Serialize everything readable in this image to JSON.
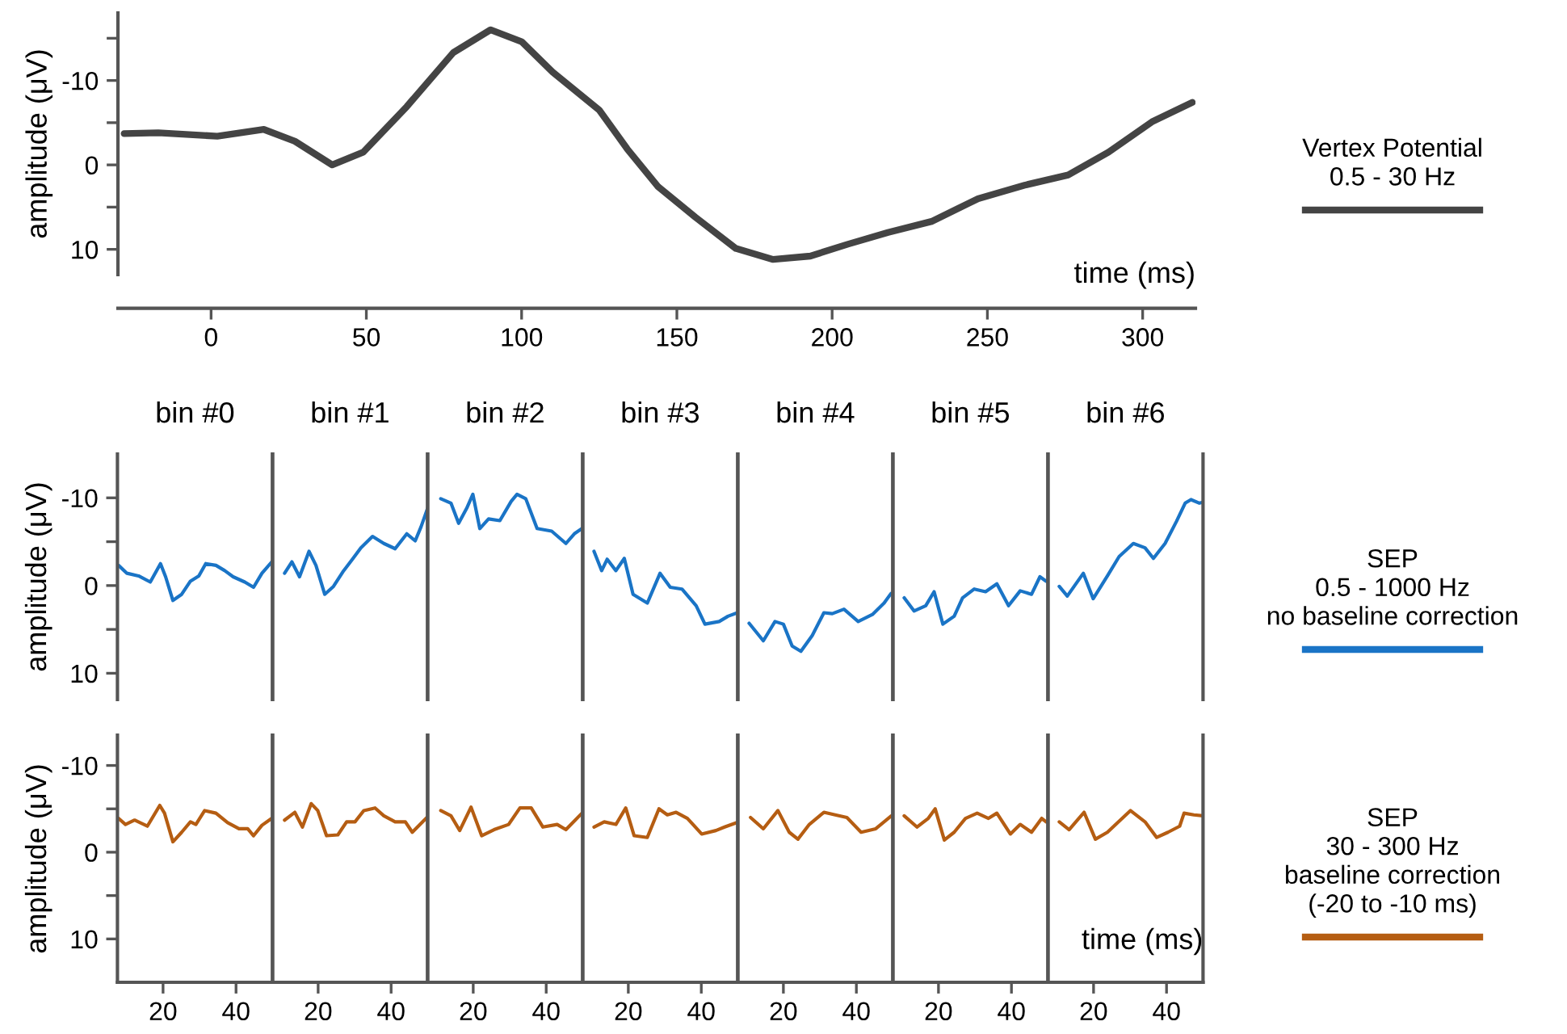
{
  "chart_data": [
    {
      "type": "line",
      "xlabel": "time (ms)",
      "ylabel": "amplitude (μV)",
      "xlim": [
        -30,
        317
      ],
      "ylim": [
        13,
        -18
      ],
      "xticks": [
        0,
        50,
        100,
        150,
        200,
        250,
        300
      ],
      "yticks": [
        {
          "value": -15,
          "label": null
        },
        -10,
        {
          "value": -5,
          "label": null
        },
        0,
        {
          "value": 5,
          "label": null
        },
        10
      ],
      "legend": "right",
      "series": [
        {
          "name": "Vertex Potential\n0.5 - 30 Hz",
          "color": "#444444",
          "x": [
            -28,
            -17,
            2,
            17,
            27,
            39,
            49,
            63,
            78,
            90,
            100,
            110,
            125,
            134,
            144,
            156,
            169,
            181,
            193,
            205,
            218,
            232,
            247,
            262,
            276,
            289,
            303,
            316
          ],
          "values": [
            -3.7,
            -3.8,
            -3.4,
            -4.2,
            -2.8,
            0,
            -1.5,
            -6.9,
            -13.3,
            -16,
            -14.6,
            -11,
            -6.5,
            -1.9,
            2.6,
            6.2,
            9.9,
            11.2,
            10.8,
            9.4,
            8.0,
            6.7,
            4.0,
            2.4,
            1.2,
            -1.5,
            -5.1,
            -7.4
          ]
        }
      ]
    },
    {
      "type": "line",
      "title": "bin #0",
      "ylabel": "amplitude (μV)",
      "xlim": [
        7.5,
        50
      ],
      "ylim": [
        13,
        -15
      ],
      "yticks": [
        -10,
        {
          "value": -5,
          "label": null
        },
        0,
        {
          "value": 5,
          "label": null
        },
        10
      ],
      "tick_labels": "y",
      "series": [
        {
          "color": "#1a74c6",
          "x": [
            7.8,
            10.1,
            13.3,
            16.5,
            19.3,
            20.7,
            22.7,
            25.1,
            27.5,
            29.8,
            31.7,
            34.5,
            36.9,
            39.2,
            42.4,
            44.8,
            47.1,
            49.8
          ],
          "values": [
            -2.3,
            -1.4,
            -1.1,
            -0.4,
            -2.5,
            -1.0,
            1.7,
            1.0,
            -0.5,
            -1.1,
            -2.5,
            -2.3,
            -1.7,
            -1.0,
            -0.4,
            0.2,
            -1.4,
            -2.7
          ]
        }
      ]
    },
    {
      "type": "line",
      "title": "bin #1",
      "xlim": [
        7.5,
        50
      ],
      "ylim": [
        13,
        -15
      ],
      "tick_labels": false,
      "series": [
        {
          "color": "#1a74c6",
          "x": [
            10.8,
            12.8,
            14.9,
            17.5,
            19.4,
            21.8,
            24.2,
            27,
            29.4,
            31.7,
            34.9,
            38,
            41.1,
            44.3,
            46.6,
            48.2,
            50
          ],
          "values": [
            -1.4,
            -2.7,
            -1.0,
            -3.9,
            -2.3,
            1.0,
            0.1,
            -1.7,
            -3.0,
            -4.3,
            -5.6,
            -4.8,
            -4.2,
            -5.9,
            -5.1,
            -6.7,
            -8.8
          ]
        }
      ]
    },
    {
      "type": "line",
      "title": "bin #2",
      "xlim": [
        7.5,
        50
      ],
      "ylim": [
        13,
        -15
      ],
      "tick_labels": false,
      "series": [
        {
          "color": "#1a74c6",
          "x": [
            11.1,
            13.9,
            16,
            18.2,
            19.9,
            21.8,
            24.2,
            27.3,
            30.4,
            32,
            34.4,
            37.5,
            41.5,
            45.4,
            47.7,
            49.8
          ],
          "values": [
            -9.9,
            -9.4,
            -7.1,
            -8.8,
            -10.4,
            -6.5,
            -7.6,
            -7.4,
            -9.6,
            -10.4,
            -9.9,
            -6.5,
            -6.2,
            -4.8,
            -5.9,
            -6.5
          ]
        }
      ]
    },
    {
      "type": "line",
      "title": "bin #3",
      "xlim": [
        7.5,
        50
      ],
      "ylim": [
        13,
        -15
      ],
      "tick_labels": false,
      "series": [
        {
          "color": "#1a74c6",
          "x": [
            10.6,
            12.7,
            14.2,
            16.6,
            18.9,
            21.3,
            25.2,
            28.7,
            31.5,
            34.7,
            38.6,
            41,
            44.9,
            47.3,
            49.9
          ],
          "values": [
            -3.9,
            -1.7,
            -3.0,
            -1.7,
            -3.1,
            1.0,
            2.0,
            -1.4,
            0.2,
            0.4,
            2.3,
            4.4,
            4.1,
            3.5,
            3.1
          ]
        }
      ]
    },
    {
      "type": "line",
      "title": "bin #4",
      "xlim": [
        7.5,
        50
      ],
      "ylim": [
        13,
        -15
      ],
      "tick_labels": false,
      "series": [
        {
          "color": "#1a74c6",
          "x": [
            10.6,
            14.5,
            17.7,
            20,
            22.4,
            24.8,
            27.9,
            31.1,
            33.4,
            36.6,
            40.5,
            44.4,
            47.6,
            49.5
          ],
          "values": [
            4.3,
            6.3,
            4.1,
            4.4,
            6.9,
            7.5,
            5.7,
            3.1,
            3.2,
            2.7,
            4.1,
            3.3,
            2.0,
            0.9
          ]
        }
      ]
    },
    {
      "type": "line",
      "title": "bin #5",
      "xlim": [
        7.5,
        50
      ],
      "ylim": [
        13,
        -15
      ],
      "tick_labels": false,
      "series": [
        {
          "color": "#1a74c6",
          "x": [
            10.6,
            13.3,
            16.5,
            18.8,
            21.2,
            24.3,
            26.6,
            29.8,
            32.9,
            36,
            39.2,
            42.4,
            45.5,
            47.8,
            49.5
          ],
          "values": [
            1.4,
            2.9,
            2.3,
            0.7,
            4.4,
            3.5,
            1.4,
            0.4,
            0.7,
            -0.2,
            2.3,
            0.6,
            1.0,
            -1.0,
            -0.5
          ]
        }
      ]
    },
    {
      "type": "line",
      "title": "bin #6",
      "xlim": [
        7.5,
        50
      ],
      "ylim": [
        13,
        -15
      ],
      "tick_labels": false,
      "legend": "right",
      "series": [
        {
          "name": "SEP\n0.5 - 1000 Hz\nno baseline correction",
          "color": "#1a74c6",
          "x": [
            10.6,
            12.8,
            17.2,
            19.9,
            23.8,
            27,
            30.9,
            34.1,
            36.4,
            39.6,
            42.7,
            45.1,
            46.7,
            49,
            50
          ],
          "values": [
            0.1,
            1.2,
            -1.4,
            1.5,
            -1.1,
            -3.3,
            -4.8,
            -4.3,
            -3.1,
            -4.8,
            -7.3,
            -9.4,
            -9.8,
            -9.4,
            -9.5
          ]
        }
      ]
    },
    {
      "type": "line",
      "ylabel": "amplitude (μV)",
      "xlim": [
        7.5,
        50
      ],
      "ylim": [
        15,
        -13.5
      ],
      "xticks": [
        20,
        40
      ],
      "yticks": [
        -10,
        {
          "value": -5,
          "label": null
        },
        0,
        {
          "value": 5,
          "label": null
        },
        10
      ],
      "series": [
        {
          "color": "#b55d12",
          "x": [
            7.8,
            9.7,
            12.2,
            15.7,
            19.1,
            20.4,
            22.7,
            25.1,
            27.5,
            29,
            31.4,
            34.5,
            37.7,
            40.8,
            43.2,
            44.8,
            47.1,
            49.8
          ],
          "values": [
            -3.9,
            -3.2,
            -3.7,
            -3.0,
            -5.4,
            -4.5,
            -1.2,
            -2.3,
            -3.5,
            -3.2,
            -4.8,
            -4.5,
            -3.4,
            -2.7,
            -2.7,
            -1.9,
            -3.1,
            -3.9
          ]
        }
      ]
    },
    {
      "type": "line",
      "xlim": [
        7.5,
        50
      ],
      "ylim": [
        15,
        -13.5
      ],
      "xticks": [
        20,
        40
      ],
      "tick_labels": "x",
      "series": [
        {
          "color": "#b55d12",
          "x": [
            10.8,
            13.6,
            15.7,
            18.1,
            19.9,
            22.3,
            25.4,
            27.8,
            30.1,
            32.5,
            35.6,
            38,
            41.1,
            43.9,
            45.8,
            49.8
          ],
          "values": [
            -3.7,
            -4.6,
            -2.9,
            -5.6,
            -4.8,
            -1.9,
            -2.0,
            -3.5,
            -3.5,
            -4.8,
            -5.1,
            -4.2,
            -3.5,
            -3.5,
            -2.3,
            -4.0
          ]
        }
      ]
    },
    {
      "type": "line",
      "xlim": [
        7.5,
        50
      ],
      "ylim": [
        15,
        -13.5
      ],
      "xticks": [
        20,
        40
      ],
      "tick_labels": "x",
      "series": [
        {
          "color": "#b55d12",
          "x": [
            11.1,
            13.9,
            16.3,
            19.4,
            22.3,
            25.7,
            29.7,
            32.8,
            35.9,
            39.1,
            43,
            45.4,
            49.8
          ],
          "values": [
            -4.8,
            -4.2,
            -2.5,
            -5.2,
            -1.9,
            -2.6,
            -3.2,
            -5.1,
            -5.1,
            -2.9,
            -3.2,
            -2.6,
            -4.5
          ]
        }
      ]
    },
    {
      "type": "line",
      "xlim": [
        7.5,
        50
      ],
      "ylim": [
        15,
        -13.5
      ],
      "xticks": [
        20,
        40
      ],
      "tick_labels": "x",
      "series": [
        {
          "color": "#b55d12",
          "x": [
            10.6,
            13.4,
            16.6,
            19.3,
            21.6,
            25.2,
            28.4,
            30.7,
            33.1,
            36.2,
            40.1,
            44,
            46.4,
            49.6
          ],
          "values": [
            -2.9,
            -3.5,
            -3.2,
            -5.1,
            -1.9,
            -1.7,
            -5.0,
            -4.3,
            -4.6,
            -3.9,
            -2.1,
            -2.5,
            -2.9,
            -3.4
          ]
        }
      ]
    },
    {
      "type": "line",
      "xlim": [
        7.5,
        50
      ],
      "ylim": [
        15,
        -13.5
      ],
      "xticks": [
        20,
        40
      ],
      "tick_labels": "x",
      "series": [
        {
          "color": "#b55d12",
          "x": [
            11,
            14.5,
            18.5,
            21.6,
            24,
            27.1,
            31.1,
            34.2,
            37.4,
            41.3,
            45.3,
            49.6
          ],
          "values": [
            -4.0,
            -2.7,
            -4.8,
            -2.3,
            -1.5,
            -3.2,
            -4.6,
            -4.3,
            -4.0,
            -2.3,
            -2.7,
            -4.2
          ]
        }
      ]
    },
    {
      "type": "line",
      "xlim": [
        7.5,
        50
      ],
      "ylim": [
        15,
        -13.5
      ],
      "xticks": [
        20,
        40
      ],
      "tick_labels": "x",
      "series": [
        {
          "color": "#b55d12",
          "x": [
            10.6,
            14.1,
            17.2,
            19.1,
            21.6,
            24.3,
            27.4,
            30.6,
            33.7,
            36,
            39.7,
            42.4,
            45.5,
            48.3,
            49.5
          ],
          "values": [
            -4.2,
            -2.9,
            -3.9,
            -5.0,
            -1.4,
            -2.3,
            -3.9,
            -4.5,
            -3.9,
            -4.5,
            -2.1,
            -3.2,
            -2.3,
            -3.9,
            -3.5
          ]
        }
      ]
    },
    {
      "type": "line",
      "xlabel": "time (ms)",
      "xlim": [
        7.5,
        50
      ],
      "ylim": [
        15,
        -13.5
      ],
      "xticks": [
        20,
        40
      ],
      "tick_labels": "x",
      "legend": "right",
      "series": [
        {
          "name": "SEP\n30 - 300 Hz\nbaseline correction\n(-20 to -10 ms)",
          "color": "#b55d12",
          "x": [
            10.6,
            13.3,
            17.4,
            20.5,
            23.8,
            30.1,
            34.1,
            37.3,
            40.4,
            43.6,
            44.8,
            47.5,
            50
          ],
          "values": [
            -3.5,
            -2.6,
            -4.6,
            -1.5,
            -2.3,
            -4.8,
            -3.5,
            -1.7,
            -2.3,
            -3.0,
            -4.5,
            -4.3,
            -4.2
          ]
        }
      ]
    }
  ]
}
